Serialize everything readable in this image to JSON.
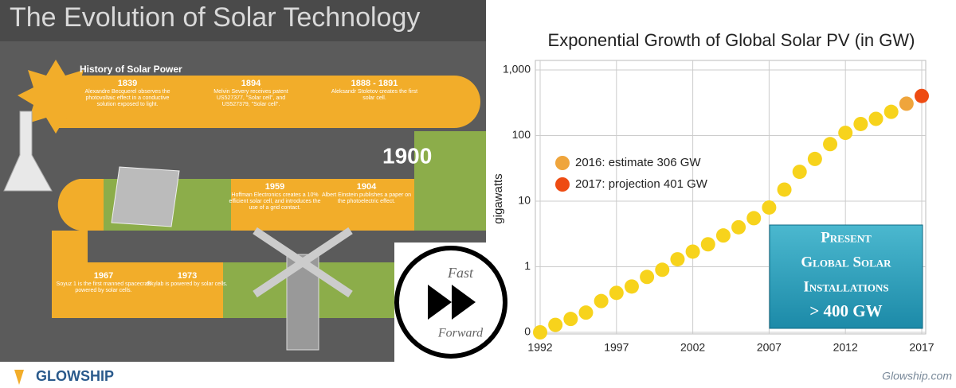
{
  "infographic": {
    "title": "The Evolution of Solar Technology",
    "subtitle": "History of Solar Power",
    "year_marker": "1900",
    "milestones": [
      {
        "year": "1839",
        "text": "Alexandre Becquerel observes the photovoltaic effect in a conductive solution exposed to light."
      },
      {
        "year": "1894",
        "text": "Melvin Severy receives patent US527377, \"Solar cell\", and US527379, \"Solar cell\"."
      },
      {
        "year": "1888 - 1891",
        "text": "Aleksandr Stoletov creates the first solar cell."
      },
      {
        "year": "1959",
        "text": "Hoffman Electronics creates a 10% efficient solar cell, and introduces the use of a grid contact."
      },
      {
        "year": "1904",
        "text": "Albert Einstein publishes a paper on the photoelectric effect."
      },
      {
        "year": "1967",
        "text": "Soyuz 1 is the first manned spacecraft powered by solar cells."
      },
      {
        "year": "1973",
        "text": "Skylab is powered by solar cells."
      }
    ]
  },
  "button": {
    "line1": "Fast",
    "line2": "Forward"
  },
  "chart_data": {
    "type": "scatter",
    "title": "Exponential Growth of Global Solar PV (in GW)",
    "y_label": "gigawatts",
    "log_y": true,
    "x": [
      1992,
      1993,
      1994,
      1995,
      1996,
      1997,
      1998,
      1999,
      2000,
      2001,
      2002,
      2003,
      2004,
      2005,
      2006,
      2007,
      2008,
      2009,
      2010,
      2011,
      2012,
      2013,
      2014,
      2015,
      2016,
      2017
    ],
    "xlim": [
      1992,
      2017
    ],
    "xticks": [
      1992,
      1997,
      2002,
      2007,
      2012,
      2017
    ],
    "ylim": [
      0.1,
      1000
    ],
    "yticks": [
      {
        "value": 0.1,
        "label": "0"
      },
      1,
      10,
      100,
      {
        "value": 1000,
        "label": "1,000"
      }
    ],
    "grid": true,
    "series": [
      {
        "color": "#f7d31c",
        "values": [
          0.1,
          0.13,
          0.16,
          0.2,
          0.3,
          0.4,
          0.5,
          0.7,
          0.9,
          1.3,
          1.7,
          2.2,
          3,
          4,
          5.5,
          8,
          15,
          28,
          44,
          74,
          110,
          150,
          180,
          230,
          null,
          null
        ]
      },
      {
        "name": "2016: estimate  306 GW",
        "color": "#efa53c",
        "values": [
          null,
          null,
          null,
          null,
          null,
          null,
          null,
          null,
          null,
          null,
          null,
          null,
          null,
          null,
          null,
          null,
          null,
          null,
          null,
          null,
          null,
          null,
          null,
          null,
          306,
          null
        ]
      },
      {
        "name": "2017: projection 401 GW",
        "color": "#ee4b12",
        "values": [
          null,
          null,
          null,
          null,
          null,
          null,
          null,
          null,
          null,
          null,
          null,
          null,
          null,
          null,
          null,
          null,
          null,
          null,
          null,
          null,
          null,
          null,
          null,
          null,
          null,
          401
        ]
      }
    ],
    "annotation": [
      "Present",
      "Global Solar",
      "Installations",
      "> 400 GW"
    ]
  },
  "footer": {
    "brand": "GLOWSHIP",
    "site": "Glowship.com"
  }
}
